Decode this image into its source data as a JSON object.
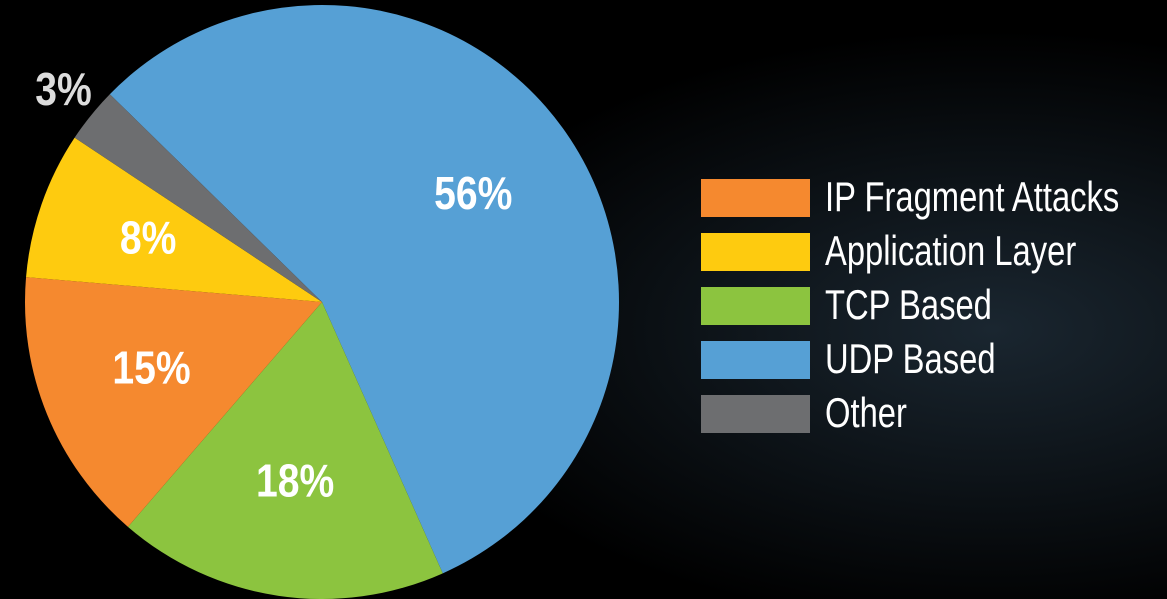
{
  "chart_data": {
    "type": "pie",
    "categories": [
      "IP Fragment Attacks",
      "Application Layer",
      "TCP Based",
      "UDP Based",
      "Other"
    ],
    "values": [
      15,
      8,
      18,
      56,
      3
    ],
    "value_labels": [
      "15%",
      "8%",
      "18%",
      "56%",
      "3%"
    ],
    "colors": [
      "#f5892f",
      "#fecb0f",
      "#8cc43f",
      "#56a0d5",
      "#6d6e70"
    ],
    "legend": "right"
  }
}
